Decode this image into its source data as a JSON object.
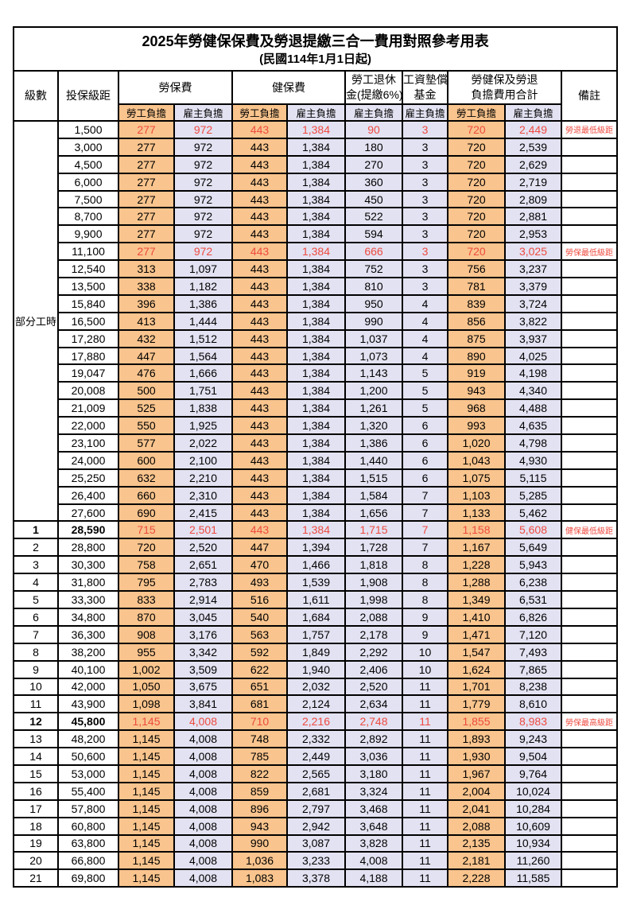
{
  "page": {
    "title_line1": "2025年勞健保保費及勞退提繳三合一費用對照參考用表",
    "title_line2": "(民國114年1月1日起)"
  },
  "colors": {
    "employee_bg": "#F9C48D",
    "employer_bg": "#E3E2F2",
    "highlight_red": "#EE4B40",
    "border": "#000000"
  },
  "table": {
    "headers": {
      "level": "級數",
      "bracket": "投保級距",
      "labor_insurance": "勞保費",
      "health_insurance": "健保費",
      "pension_line1": "勞工退休",
      "pension_line2": "金(提繳6%)",
      "wage_fund_line1": "工資墊償",
      "wage_fund_line2": "基金",
      "total_line1": "勞健保及勞退",
      "total_line2": "負擔費用合計",
      "employee": "勞工負擔",
      "employer": "雇主負擔",
      "remarks": "備註"
    },
    "part_time_label": "部分工時",
    "part_time_rowspan": 23,
    "rows": [
      {
        "lv": "",
        "bk": "1,500",
        "v": [
          "277",
          "972",
          "443",
          "1,384",
          "90",
          "3",
          "720",
          "2,449"
        ],
        "rm": "勞退最低級距",
        "red": true,
        "bold": false
      },
      {
        "lv": "",
        "bk": "3,000",
        "v": [
          "277",
          "972",
          "443",
          "1,384",
          "180",
          "3",
          "720",
          "2,539"
        ],
        "rm": "",
        "red": false,
        "bold": false
      },
      {
        "lv": "",
        "bk": "4,500",
        "v": [
          "277",
          "972",
          "443",
          "1,384",
          "270",
          "3",
          "720",
          "2,629"
        ],
        "rm": "",
        "red": false,
        "bold": false
      },
      {
        "lv": "",
        "bk": "6,000",
        "v": [
          "277",
          "972",
          "443",
          "1,384",
          "360",
          "3",
          "720",
          "2,719"
        ],
        "rm": "",
        "red": false,
        "bold": false
      },
      {
        "lv": "",
        "bk": "7,500",
        "v": [
          "277",
          "972",
          "443",
          "1,384",
          "450",
          "3",
          "720",
          "2,809"
        ],
        "rm": "",
        "red": false,
        "bold": false
      },
      {
        "lv": "",
        "bk": "8,700",
        "v": [
          "277",
          "972",
          "443",
          "1,384",
          "522",
          "3",
          "720",
          "2,881"
        ],
        "rm": "",
        "red": false,
        "bold": false
      },
      {
        "lv": "",
        "bk": "9,900",
        "v": [
          "277",
          "972",
          "443",
          "1,384",
          "594",
          "3",
          "720",
          "2,953"
        ],
        "rm": "",
        "red": false,
        "bold": false
      },
      {
        "lv": "",
        "bk": "11,100",
        "v": [
          "277",
          "972",
          "443",
          "1,384",
          "666",
          "3",
          "720",
          "3,025"
        ],
        "rm": "勞保最低級距",
        "red": true,
        "bold": false
      },
      {
        "lv": "",
        "bk": "12,540",
        "v": [
          "313",
          "1,097",
          "443",
          "1,384",
          "752",
          "3",
          "756",
          "3,237"
        ],
        "rm": "",
        "red": false,
        "bold": false
      },
      {
        "lv": "",
        "bk": "13,500",
        "v": [
          "338",
          "1,182",
          "443",
          "1,384",
          "810",
          "3",
          "781",
          "3,379"
        ],
        "rm": "",
        "red": false,
        "bold": false
      },
      {
        "lv": "",
        "bk": "15,840",
        "v": [
          "396",
          "1,386",
          "443",
          "1,384",
          "950",
          "4",
          "839",
          "3,724"
        ],
        "rm": "",
        "red": false,
        "bold": false
      },
      {
        "lv": "",
        "bk": "16,500",
        "v": [
          "413",
          "1,444",
          "443",
          "1,384",
          "990",
          "4",
          "856",
          "3,822"
        ],
        "rm": "",
        "red": false,
        "bold": false
      },
      {
        "lv": "",
        "bk": "17,280",
        "v": [
          "432",
          "1,512",
          "443",
          "1,384",
          "1,037",
          "4",
          "875",
          "3,937"
        ],
        "rm": "",
        "red": false,
        "bold": false
      },
      {
        "lv": "",
        "bk": "17,880",
        "v": [
          "447",
          "1,564",
          "443",
          "1,384",
          "1,073",
          "4",
          "890",
          "4,025"
        ],
        "rm": "",
        "red": false,
        "bold": false
      },
      {
        "lv": "",
        "bk": "19,047",
        "v": [
          "476",
          "1,666",
          "443",
          "1,384",
          "1,143",
          "5",
          "919",
          "4,198"
        ],
        "rm": "",
        "red": false,
        "bold": false
      },
      {
        "lv": "",
        "bk": "20,008",
        "v": [
          "500",
          "1,751",
          "443",
          "1,384",
          "1,200",
          "5",
          "943",
          "4,340"
        ],
        "rm": "",
        "red": false,
        "bold": false
      },
      {
        "lv": "",
        "bk": "21,009",
        "v": [
          "525",
          "1,838",
          "443",
          "1,384",
          "1,261",
          "5",
          "968",
          "4,488"
        ],
        "rm": "",
        "red": false,
        "bold": false
      },
      {
        "lv": "",
        "bk": "22,000",
        "v": [
          "550",
          "1,925",
          "443",
          "1,384",
          "1,320",
          "6",
          "993",
          "4,635"
        ],
        "rm": "",
        "red": false,
        "bold": false
      },
      {
        "lv": "",
        "bk": "23,100",
        "v": [
          "577",
          "2,022",
          "443",
          "1,384",
          "1,386",
          "6",
          "1,020",
          "4,798"
        ],
        "rm": "",
        "red": false,
        "bold": false
      },
      {
        "lv": "",
        "bk": "24,000",
        "v": [
          "600",
          "2,100",
          "443",
          "1,384",
          "1,440",
          "6",
          "1,043",
          "4,930"
        ],
        "rm": "",
        "red": false,
        "bold": false
      },
      {
        "lv": "",
        "bk": "25,250",
        "v": [
          "632",
          "2,210",
          "443",
          "1,384",
          "1,515",
          "6",
          "1,075",
          "5,115"
        ],
        "rm": "",
        "red": false,
        "bold": false
      },
      {
        "lv": "",
        "bk": "26,400",
        "v": [
          "660",
          "2,310",
          "443",
          "1,384",
          "1,584",
          "7",
          "1,103",
          "5,285"
        ],
        "rm": "",
        "red": false,
        "bold": false
      },
      {
        "lv": "",
        "bk": "27,600",
        "v": [
          "690",
          "2,415",
          "443",
          "1,384",
          "1,656",
          "7",
          "1,133",
          "5,462"
        ],
        "rm": "",
        "red": false,
        "bold": false
      },
      {
        "lv": "1",
        "bk": "28,590",
        "v": [
          "715",
          "2,501",
          "443",
          "1,384",
          "1,715",
          "7",
          "1,158",
          "5,608"
        ],
        "rm": "健保最低級距",
        "red": true,
        "bold": true
      },
      {
        "lv": "2",
        "bk": "28,800",
        "v": [
          "720",
          "2,520",
          "447",
          "1,394",
          "1,728",
          "7",
          "1,167",
          "5,649"
        ],
        "rm": "",
        "red": false,
        "bold": false
      },
      {
        "lv": "3",
        "bk": "30,300",
        "v": [
          "758",
          "2,651",
          "470",
          "1,466",
          "1,818",
          "8",
          "1,228",
          "5,943"
        ],
        "rm": "",
        "red": false,
        "bold": false
      },
      {
        "lv": "4",
        "bk": "31,800",
        "v": [
          "795",
          "2,783",
          "493",
          "1,539",
          "1,908",
          "8",
          "1,288",
          "6,238"
        ],
        "rm": "",
        "red": false,
        "bold": false
      },
      {
        "lv": "5",
        "bk": "33,300",
        "v": [
          "833",
          "2,914",
          "516",
          "1,611",
          "1,998",
          "8",
          "1,349",
          "6,531"
        ],
        "rm": "",
        "red": false,
        "bold": false
      },
      {
        "lv": "6",
        "bk": "34,800",
        "v": [
          "870",
          "3,045",
          "540",
          "1,684",
          "2,088",
          "9",
          "1,410",
          "6,826"
        ],
        "rm": "",
        "red": false,
        "bold": false
      },
      {
        "lv": "7",
        "bk": "36,300",
        "v": [
          "908",
          "3,176",
          "563",
          "1,757",
          "2,178",
          "9",
          "1,471",
          "7,120"
        ],
        "rm": "",
        "red": false,
        "bold": false
      },
      {
        "lv": "8",
        "bk": "38,200",
        "v": [
          "955",
          "3,342",
          "592",
          "1,849",
          "2,292",
          "10",
          "1,547",
          "7,493"
        ],
        "rm": "",
        "red": false,
        "bold": false
      },
      {
        "lv": "9",
        "bk": "40,100",
        "v": [
          "1,002",
          "3,509",
          "622",
          "1,940",
          "2,406",
          "10",
          "1,624",
          "7,865"
        ],
        "rm": "",
        "red": false,
        "bold": false
      },
      {
        "lv": "10",
        "bk": "42,000",
        "v": [
          "1,050",
          "3,675",
          "651",
          "2,032",
          "2,520",
          "11",
          "1,701",
          "8,238"
        ],
        "rm": "",
        "red": false,
        "bold": false
      },
      {
        "lv": "11",
        "bk": "43,900",
        "v": [
          "1,098",
          "3,841",
          "681",
          "2,124",
          "2,634",
          "11",
          "1,779",
          "8,610"
        ],
        "rm": "",
        "red": false,
        "bold": false
      },
      {
        "lv": "12",
        "bk": "45,800",
        "v": [
          "1,145",
          "4,008",
          "710",
          "2,216",
          "2,748",
          "11",
          "1,855",
          "8,983"
        ],
        "rm": "勞保最高級距",
        "red": true,
        "bold": true
      },
      {
        "lv": "13",
        "bk": "48,200",
        "v": [
          "1,145",
          "4,008",
          "748",
          "2,332",
          "2,892",
          "11",
          "1,893",
          "9,243"
        ],
        "rm": "",
        "red": false,
        "bold": false
      },
      {
        "lv": "14",
        "bk": "50,600",
        "v": [
          "1,145",
          "4,008",
          "785",
          "2,449",
          "3,036",
          "11",
          "1,930",
          "9,504"
        ],
        "rm": "",
        "red": false,
        "bold": false
      },
      {
        "lv": "15",
        "bk": "53,000",
        "v": [
          "1,145",
          "4,008",
          "822",
          "2,565",
          "3,180",
          "11",
          "1,967",
          "9,764"
        ],
        "rm": "",
        "red": false,
        "bold": false
      },
      {
        "lv": "16",
        "bk": "55,400",
        "v": [
          "1,145",
          "4,008",
          "859",
          "2,681",
          "3,324",
          "11",
          "2,004",
          "10,024"
        ],
        "rm": "",
        "red": false,
        "bold": false
      },
      {
        "lv": "17",
        "bk": "57,800",
        "v": [
          "1,145",
          "4,008",
          "896",
          "2,797",
          "3,468",
          "11",
          "2,041",
          "10,284"
        ],
        "rm": "",
        "red": false,
        "bold": false
      },
      {
        "lv": "18",
        "bk": "60,800",
        "v": [
          "1,145",
          "4,008",
          "943",
          "2,942",
          "3,648",
          "11",
          "2,088",
          "10,609"
        ],
        "rm": "",
        "red": false,
        "bold": false
      },
      {
        "lv": "19",
        "bk": "63,800",
        "v": [
          "1,145",
          "4,008",
          "990",
          "3,087",
          "3,828",
          "11",
          "2,135",
          "10,934"
        ],
        "rm": "",
        "red": false,
        "bold": false
      },
      {
        "lv": "20",
        "bk": "66,800",
        "v": [
          "1,145",
          "4,008",
          "1,036",
          "3,233",
          "4,008",
          "11",
          "2,181",
          "11,260"
        ],
        "rm": "",
        "red": false,
        "bold": false
      },
      {
        "lv": "21",
        "bk": "69,800",
        "v": [
          "1,145",
          "4,008",
          "1,083",
          "3,378",
          "4,188",
          "11",
          "2,228",
          "11,585"
        ],
        "rm": "",
        "red": false,
        "bold": false
      }
    ]
  }
}
